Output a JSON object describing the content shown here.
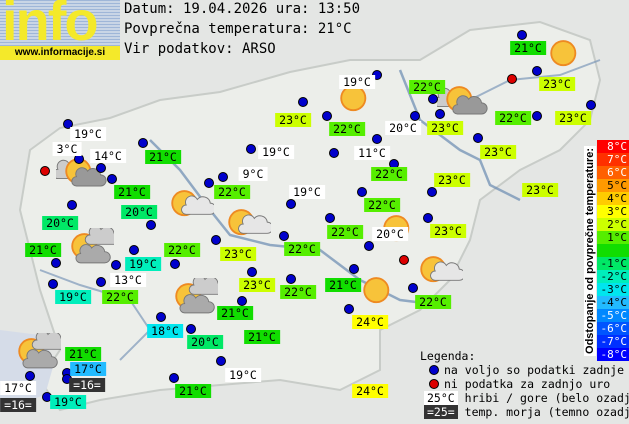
{
  "header": {
    "logo_text": "info",
    "logo_url": "www.informacije.si",
    "date_line": "Datum: 19.04.2026 ura: 13:50",
    "avg_temp_line": "Povprečna temperatura: 21°C",
    "source_line": "Vir podatkov: ARSO"
  },
  "colors": {
    "available_dot": "#0000cc",
    "missing_dot": "#dd0000",
    "mountain_bg": "#ffffff",
    "sea_bg": "#333333"
  },
  "stations": [
    {
      "t": "19°C",
      "k": "m"
    },
    {
      "t": "3°C",
      "k": "m"
    },
    {
      "t": "14°C",
      "k": "m"
    },
    {
      "t": "21°C",
      "k": "v",
      "d": 0
    },
    {
      "t": "19°C",
      "k": "m"
    },
    {
      "t": "9°C",
      "k": "m"
    },
    {
      "t": "21°C",
      "k": "v",
      "d": 0
    },
    {
      "t": "22°C",
      "k": "v",
      "d": 1
    },
    {
      "t": "19°C",
      "k": "m"
    },
    {
      "t": "20°C",
      "k": "v",
      "d": -1
    },
    {
      "t": "20°C",
      "k": "v",
      "d": -1
    },
    {
      "t": "21°C",
      "k": "v",
      "d": 0
    },
    {
      "t": "22°C",
      "k": "v",
      "d": 1
    },
    {
      "t": "23°C",
      "k": "v",
      "d": 2
    },
    {
      "t": "22°C",
      "k": "v",
      "d": 1
    },
    {
      "t": "19°C",
      "k": "v",
      "d": -2
    },
    {
      "t": "13°C",
      "k": "m"
    },
    {
      "t": "23°C",
      "k": "v",
      "d": 2
    },
    {
      "t": "22°C",
      "k": "v",
      "d": 1
    },
    {
      "t": "19°C",
      "k": "v",
      "d": -2
    },
    {
      "t": "22°C",
      "k": "v",
      "d": 1
    },
    {
      "t": "21°C",
      "k": "v",
      "d": 0
    },
    {
      "t": "19°C",
      "k": "m"
    },
    {
      "t": "22°C",
      "k": "v",
      "d": 1
    },
    {
      "t": "23°C",
      "k": "v",
      "d": 2
    },
    {
      "t": "22°C",
      "k": "v",
      "d": 1
    },
    {
      "t": "20°C",
      "k": "m"
    },
    {
      "t": "23°C",
      "k": "v",
      "d": 2
    },
    {
      "t": "22°C",
      "k": "v",
      "d": 1
    },
    {
      "t": "23°C",
      "k": "v",
      "d": 2
    },
    {
      "t": "11°C",
      "k": "m"
    },
    {
      "t": "23°C",
      "k": "v",
      "d": 2
    },
    {
      "t": "22°C",
      "k": "v",
      "d": 1
    },
    {
      "t": "23°C",
      "k": "v",
      "d": 2
    },
    {
      "t": "22°C",
      "k": "v",
      "d": 1
    },
    {
      "t": "23°C",
      "k": "v",
      "d": 2
    },
    {
      "t": "22°C",
      "k": "v",
      "d": 1
    },
    {
      "t": "20°C",
      "k": "m"
    },
    {
      "t": "23°C",
      "k": "v",
      "d": 2
    },
    {
      "t": "21°C",
      "k": "v",
      "d": 0
    },
    {
      "t": "22°C",
      "k": "v",
      "d": 1
    },
    {
      "t": "24°C",
      "k": "v",
      "d": 3
    },
    {
      "t": "21°C",
      "k": "v",
      "d": 0
    },
    {
      "t": "18°C",
      "k": "v",
      "d": -3
    },
    {
      "t": "20°C",
      "k": "v",
      "d": -1
    },
    {
      "t": "21°C",
      "k": "v",
      "d": 0
    },
    {
      "t": "21°C",
      "k": "v",
      "d": 0
    },
    {
      "t": "17°C",
      "k": "v",
      "d": -4
    },
    {
      "t": "=16=",
      "k": "s"
    },
    {
      "t": "17°C",
      "k": "m"
    },
    {
      "t": "=16=",
      "k": "s"
    },
    {
      "t": "19°C",
      "k": "v",
      "d": -2
    },
    {
      "t": "21°C",
      "k": "v",
      "d": 0
    },
    {
      "t": "19°C",
      "k": "m"
    },
    {
      "t": "24°C",
      "k": "v",
      "d": 3
    },
    {
      "t": "23°C",
      "k": "v",
      "d": 2
    }
  ],
  "dots": [
    "a",
    "a",
    "a",
    "a",
    "a",
    "a",
    "m",
    "a",
    "a",
    "a",
    "a",
    "a",
    "a",
    "a",
    "a",
    "a",
    "a",
    "a",
    "a",
    "a",
    "a",
    "a",
    "a",
    "a",
    "a",
    "m",
    "a",
    "a",
    "a",
    "a",
    "a",
    "a",
    "a",
    "a",
    "a",
    "a",
    "a",
    "a",
    "a",
    "a",
    "m",
    "a",
    "a",
    "a",
    "a",
    "a",
    "a",
    "a",
    "a",
    "a",
    "a",
    "a",
    "a",
    "a",
    "a"
  ],
  "weather": [
    "partly-cloudy-dark",
    "partly-cloudy",
    "partly-cloudy",
    "partly-cloudy-two",
    "partly-cloudy-two",
    "sunny",
    "partly-cloudy-dark",
    "sunny",
    "sunny",
    "partly-cloudy",
    "sunny",
    "partly-cloudy-two"
  ],
  "legend": {
    "title": "Legenda:",
    "available": "na voljo so podatki zadnje ure",
    "missing": "ni podatka za zadnjo uro",
    "mountain_sample": "25°C",
    "mountain_text": "hribi / gore (belo ozadje)",
    "sea_sample": "=25=",
    "sea_text": "temp. morja (temno ozadje)"
  },
  "scale": {
    "title": "Odstopanje od povprečne temperature:",
    "steps": [
      {
        "label": "8°C",
        "d": 8,
        "color": "#ff0000"
      },
      {
        "label": "7°C",
        "d": 7,
        "color": "#ff3000"
      },
      {
        "label": "6°C",
        "d": 6,
        "color": "#ff6000"
      },
      {
        "label": "5°C",
        "d": 5,
        "color": "#ff9900"
      },
      {
        "label": "4°C",
        "d": 4,
        "color": "#ffcc00"
      },
      {
        "label": "3°C",
        "d": 3,
        "color": "#ffff00"
      },
      {
        "label": "2°C",
        "d": 2,
        "color": "#ccff00"
      },
      {
        "label": "1°C",
        "d": 1,
        "color": "#55ee00"
      },
      {
        "label": "",
        "d": 0,
        "color": "#11dd00"
      },
      {
        "label": "-1°C",
        "d": -1,
        "color": "#00e866"
      },
      {
        "label": "-2°C",
        "d": -2,
        "color": "#00eebb"
      },
      {
        "label": "-3°C",
        "d": -3,
        "color": "#00e6ee"
      },
      {
        "label": "-4°C",
        "d": -4,
        "color": "#22bbff"
      },
      {
        "label": "-5°C",
        "d": -5,
        "color": "#0088ff"
      },
      {
        "label": "-6°C",
        "d": -6,
        "color": "#0055ff"
      },
      {
        "label": "-7°C",
        "d": -7,
        "color": "#0030ff"
      },
      {
        "label": "-8°C",
        "d": -8,
        "color": "#0000ff"
      }
    ]
  }
}
